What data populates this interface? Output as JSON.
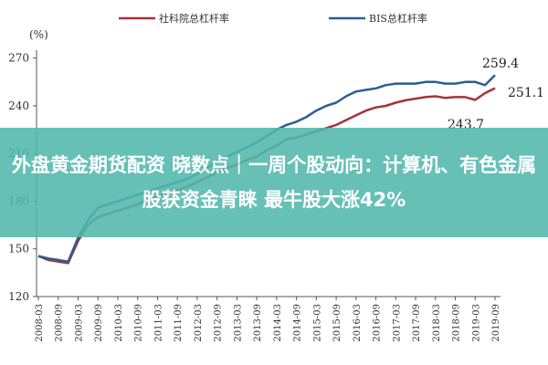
{
  "banner": {
    "text": "外盘黄金期货配资 晓数点｜一周个股动向：计算机、有色金属股获资金青睐 最牛股大涨42%"
  },
  "colors": {
    "series1": "#a3343b",
    "series2": "#2d5e8f",
    "banner": "#52b8ac"
  },
  "chart_data": {
    "type": "line",
    "unit_label": "(%)",
    "ylim": [
      120,
      275
    ],
    "yticks": [
      120,
      150,
      180,
      210,
      240,
      270
    ],
    "xticks": [
      "2008-03",
      "2008-09",
      "2009-03",
      "2009-09",
      "2010-03",
      "2010-09",
      "2011-03",
      "2011-09",
      "2012-03",
      "2012-09",
      "2013-03",
      "2013-09",
      "2014-03",
      "2014-09",
      "2015-03",
      "2015-09",
      "2016-03",
      "2016-09",
      "2017-03",
      "2017-09",
      "2018-03",
      "2018-09",
      "2019-03",
      "2019-09"
    ],
    "x": [
      "2008-03",
      "2008-06",
      "2008-09",
      "2008-12",
      "2009-03",
      "2009-06",
      "2009-09",
      "2009-12",
      "2010-03",
      "2010-06",
      "2010-09",
      "2010-12",
      "2011-03",
      "2011-06",
      "2011-09",
      "2011-12",
      "2012-03",
      "2012-06",
      "2012-09",
      "2012-12",
      "2013-03",
      "2013-06",
      "2013-09",
      "2013-12",
      "2014-03",
      "2014-06",
      "2014-09",
      "2014-12",
      "2015-03",
      "2015-06",
      "2015-09",
      "2015-12",
      "2016-03",
      "2016-06",
      "2016-09",
      "2016-12",
      "2017-03",
      "2017-06",
      "2017-09",
      "2017-12",
      "2018-03",
      "2018-06",
      "2018-09",
      "2018-12",
      "2019-03",
      "2019-06",
      "2019-09"
    ],
    "series": [
      {
        "name": "社科院总杠杆率",
        "values": [
          145.5,
          143,
          142,
          141,
          155,
          165,
          170,
          172,
          174,
          176,
          178,
          181,
          183,
          185,
          187,
          189,
          192,
          195,
          198,
          201,
          203,
          206,
          208,
          212,
          215,
          219,
          220,
          222,
          224,
          226,
          228,
          231,
          234,
          237,
          239,
          240,
          242,
          243.5,
          244.5,
          245.5,
          246,
          245,
          245.5,
          245.5,
          243.7,
          248,
          251.1
        ]
      },
      {
        "name": "BIS总杠杆率",
        "values": [
          145.5,
          144,
          143,
          142,
          157,
          168,
          176,
          178,
          180,
          182,
          184,
          186,
          188,
          190,
          192,
          194,
          197,
          201,
          205,
          208,
          211,
          214,
          217,
          221,
          225,
          228,
          230,
          233,
          237,
          240,
          242,
          246,
          249,
          250,
          251,
          253,
          254,
          254,
          254,
          255,
          255,
          254,
          254,
          255,
          255,
          253,
          259.4
        ]
      }
    ],
    "data_labels": [
      "259.4",
      "251.1",
      "243.7"
    ]
  }
}
